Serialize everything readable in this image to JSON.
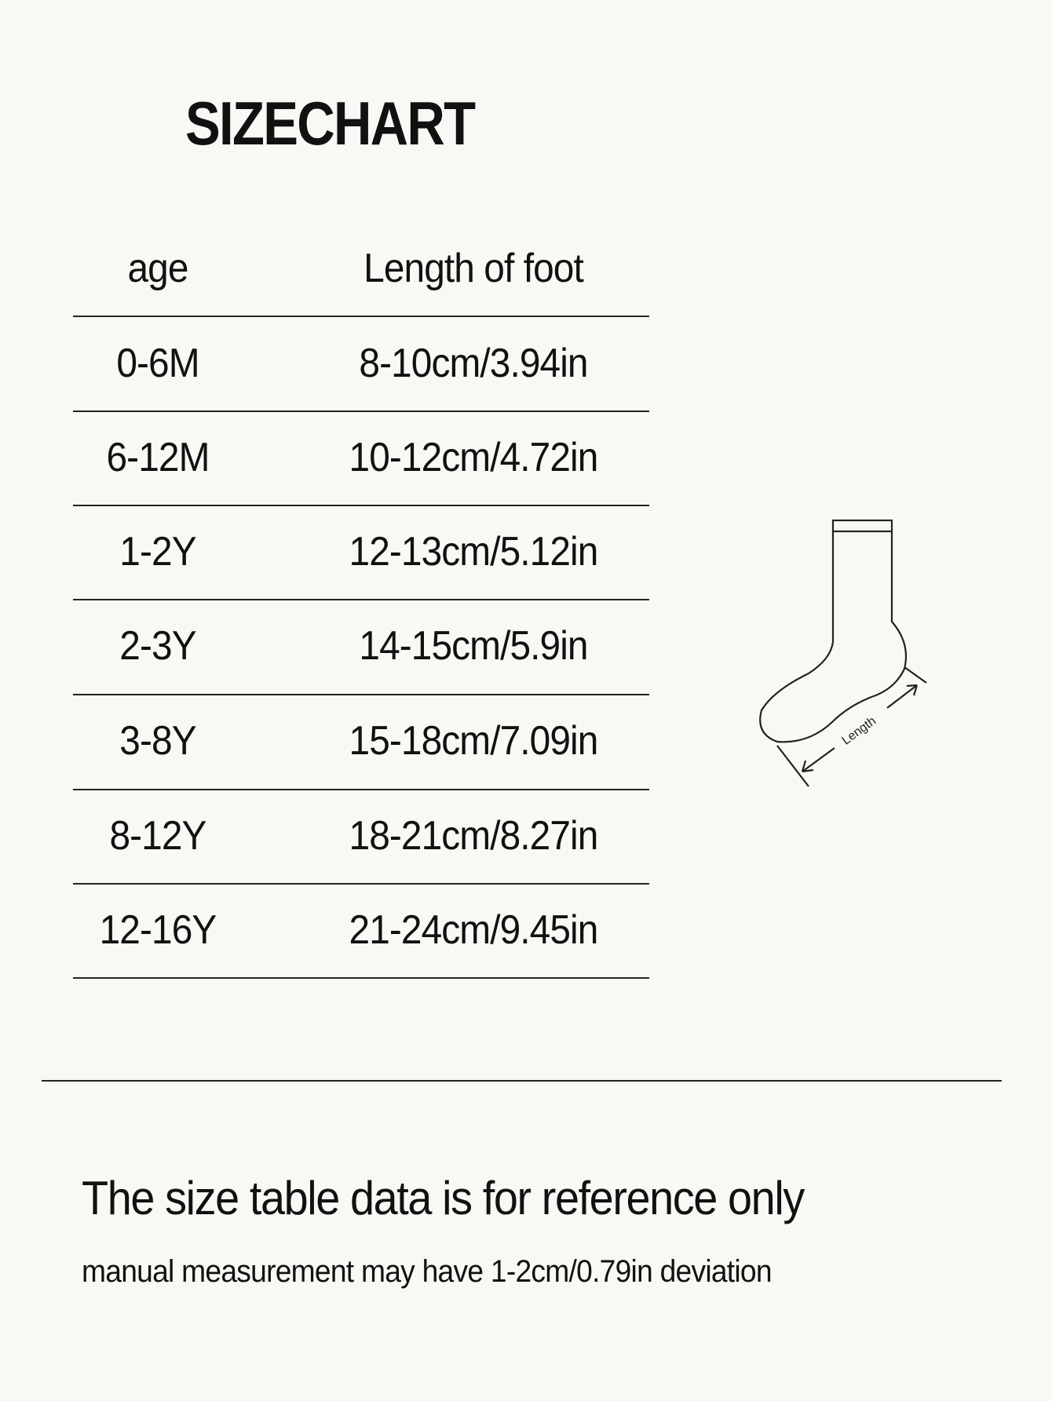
{
  "title": "SIZECHART",
  "table": {
    "headers": [
      "age",
      "Length of foot"
    ],
    "rows": [
      [
        "0-6M",
        "8-10cm/3.94in"
      ],
      [
        "6-12M",
        "10-12cm/4.72in"
      ],
      [
        "1-2Y",
        "12-13cm/5.12in"
      ],
      [
        "2-3Y",
        "14-15cm/5.9in"
      ],
      [
        "3-8Y",
        "15-18cm/7.09in"
      ],
      [
        "8-12Y",
        "18-21cm/8.27in"
      ],
      [
        "12-16Y",
        "21-24cm/9.45in"
      ]
    ]
  },
  "diagram": {
    "icon": "sock-icon",
    "label": "Length"
  },
  "notes": {
    "main": "The size table data is for reference only",
    "sub": "manual measurement may have 1-2cm/0.79in deviation"
  }
}
